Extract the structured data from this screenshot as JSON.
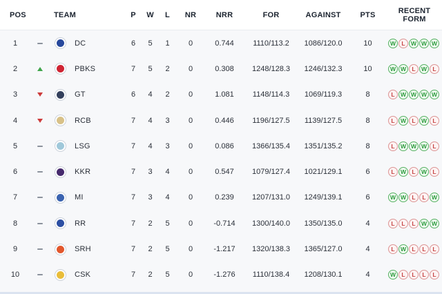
{
  "header": {
    "pos": "POS",
    "team": "TEAM",
    "p": "P",
    "w": "W",
    "l": "L",
    "nr": "NR",
    "nrr": "NRR",
    "for": "FOR",
    "against": "AGAINST",
    "pts": "PTS",
    "recent_form": "RECENT FORM"
  },
  "colors": {
    "win": "#2e9c3f",
    "win_bg": "#f0faf1",
    "loss": "#c64545",
    "loss_bg": "#fdf4f4",
    "trend_up": "#3fa44a",
    "trend_down": "#cd3b3b",
    "trend_same": "#8b929c",
    "header_text": "#1c2430",
    "body_bg": "#f7f8fa"
  },
  "rows": [
    {
      "pos": "1",
      "trend": "same",
      "team": "DC",
      "logo": "#27489c",
      "p": "6",
      "w": "5",
      "l": "1",
      "nr": "0",
      "nrr": "0.744",
      "runs_for": "1110/113.2",
      "runs_against": "1086/120.0",
      "pts": "10",
      "form": [
        "W",
        "L",
        "W",
        "W",
        "W"
      ]
    },
    {
      "pos": "2",
      "trend": "up",
      "team": "PBKS",
      "logo": "#cf2433",
      "p": "7",
      "w": "5",
      "l": "2",
      "nr": "0",
      "nrr": "0.308",
      "runs_for": "1248/128.3",
      "runs_against": "1246/132.3",
      "pts": "10",
      "form": [
        "W",
        "W",
        "L",
        "W",
        "L"
      ]
    },
    {
      "pos": "3",
      "trend": "down",
      "team": "GT",
      "logo": "#333f5c",
      "p": "6",
      "w": "4",
      "l": "2",
      "nr": "0",
      "nrr": "1.081",
      "runs_for": "1148/114.3",
      "runs_against": "1069/119.3",
      "pts": "8",
      "form": [
        "L",
        "W",
        "W",
        "W",
        "W"
      ]
    },
    {
      "pos": "4",
      "trend": "down",
      "team": "RCB",
      "logo": "#d8c188",
      "p": "7",
      "w": "4",
      "l": "3",
      "nr": "0",
      "nrr": "0.446",
      "runs_for": "1196/127.5",
      "runs_against": "1139/127.5",
      "pts": "8",
      "form": [
        "L",
        "W",
        "L",
        "W",
        "L"
      ]
    },
    {
      "pos": "5",
      "trend": "same",
      "team": "LSG",
      "logo": "#9fc8da",
      "p": "7",
      "w": "4",
      "l": "3",
      "nr": "0",
      "nrr": "0.086",
      "runs_for": "1366/135.4",
      "runs_against": "1351/135.2",
      "pts": "8",
      "form": [
        "L",
        "W",
        "W",
        "W",
        "L"
      ]
    },
    {
      "pos": "6",
      "trend": "same",
      "team": "KKR",
      "logo": "#462a6d",
      "p": "7",
      "w": "3",
      "l": "4",
      "nr": "0",
      "nrr": "0.547",
      "runs_for": "1079/127.4",
      "runs_against": "1021/129.1",
      "pts": "6",
      "form": [
        "L",
        "W",
        "L",
        "W",
        "L"
      ]
    },
    {
      "pos": "7",
      "trend": "same",
      "team": "MI",
      "logo": "#3a63b0",
      "p": "7",
      "w": "3",
      "l": "4",
      "nr": "0",
      "nrr": "0.239",
      "runs_for": "1207/131.0",
      "runs_against": "1249/139.1",
      "pts": "6",
      "form": [
        "W",
        "W",
        "L",
        "L",
        "W"
      ]
    },
    {
      "pos": "8",
      "trend": "same",
      "team": "RR",
      "logo": "#2c4fa3",
      "p": "7",
      "w": "2",
      "l": "5",
      "nr": "0",
      "nrr": "-0.714",
      "runs_for": "1300/140.0",
      "runs_against": "1350/135.0",
      "pts": "4",
      "form": [
        "L",
        "L",
        "L",
        "W",
        "W"
      ]
    },
    {
      "pos": "9",
      "trend": "same",
      "team": "SRH",
      "logo": "#e2572d",
      "p": "7",
      "w": "2",
      "l": "5",
      "nr": "0",
      "nrr": "-1.217",
      "runs_for": "1320/138.3",
      "runs_against": "1365/127.0",
      "pts": "4",
      "form": [
        "L",
        "W",
        "L",
        "L",
        "L"
      ]
    },
    {
      "pos": "10",
      "trend": "same",
      "team": "CSK",
      "logo": "#e9bd3a",
      "p": "7",
      "w": "2",
      "l": "5",
      "nr": "0",
      "nrr": "-1.276",
      "runs_for": "1110/138.4",
      "runs_against": "1208/130.1",
      "pts": "4",
      "form": [
        "W",
        "L",
        "L",
        "L",
        "L"
      ]
    }
  ]
}
